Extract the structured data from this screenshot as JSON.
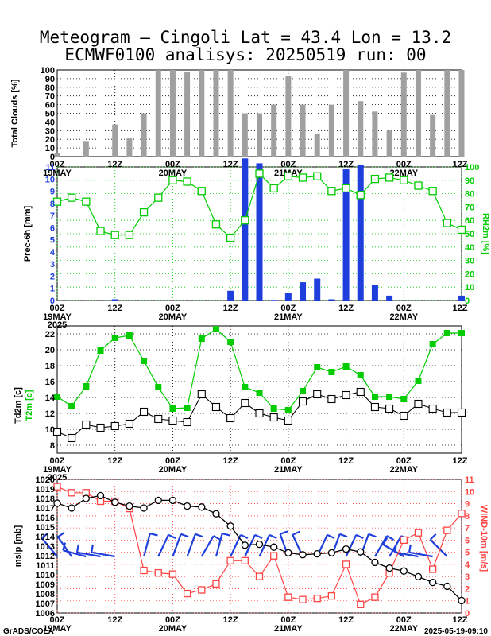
{
  "title_line1": "Meteogram – Cingoli Lat = 43.4 Lon = 13.2",
  "title_line2": "ECMWF0100 analisys: 20250519 run: 00",
  "footer_left": "GrADS/COLA",
  "footer_right": "2025-05-19-09:10",
  "time_axis": {
    "tick_labels": [
      "00Z",
      "12Z",
      "00Z",
      "12Z",
      "00Z",
      "12Z",
      "00Z",
      "12Z"
    ],
    "date_labels": [
      "19MAY",
      "20MAY",
      "21MAY",
      "22MAY"
    ],
    "year_label": "2025"
  },
  "colors": {
    "clouds": "#a0a0a0",
    "precip": "#1f3fdd",
    "humidity": "#00cc00",
    "temperature": "#00cc00",
    "dewpoint": "#000000",
    "pressure": "#000000",
    "wind": "#ff4444",
    "barbs": "#1f3fdd"
  },
  "chart_data": [
    {
      "type": "bar",
      "ylabel": "Total Clouds [%]",
      "ylim": [
        0,
        100
      ],
      "yticks": [
        0,
        10,
        20,
        30,
        40,
        50,
        60,
        70,
        80,
        90,
        100
      ],
      "x_hours": [
        0,
        6,
        12,
        15,
        18,
        21,
        24,
        27,
        30,
        33,
        36,
        39,
        42,
        45,
        48,
        51,
        54,
        57,
        60,
        63,
        66,
        69,
        72,
        75,
        78,
        81,
        84
      ],
      "values": [
        4,
        18,
        37,
        21,
        50,
        100,
        100,
        98,
        100,
        100,
        100,
        50,
        50,
        60,
        93,
        60,
        26,
        60,
        100,
        64,
        52,
        30,
        97,
        100,
        48,
        100,
        100
      ]
    },
    {
      "type": "bar+line",
      "ylabel_left": "Prec-6h [mm]",
      "ylabel_right": "RH2m [%]",
      "ylim_left": [
        0,
        11
      ],
      "yticks_left": [
        0,
        1,
        2,
        3,
        4,
        5,
        6,
        7,
        8,
        9,
        10,
        11
      ],
      "ylim_right": [
        0,
        100
      ],
      "yticks_right": [
        0,
        10,
        20,
        30,
        40,
        50,
        60,
        70,
        80,
        90,
        100
      ],
      "precip_x_hours": [
        12,
        36,
        39,
        42,
        45,
        48,
        51,
        54,
        57,
        60,
        63,
        66,
        69,
        84
      ],
      "precip_values": [
        0.1,
        0.8,
        11.7,
        11.3,
        0.05,
        0.6,
        1.5,
        1.8,
        0.1,
        10.8,
        11.2,
        1.3,
        0.4,
        0.4
      ],
      "rh_x_hours": [
        0,
        3,
        6,
        9,
        12,
        15,
        18,
        21,
        24,
        27,
        30,
        33,
        36,
        39,
        42,
        45,
        48,
        51,
        54,
        57,
        60,
        63,
        66,
        69,
        72,
        75,
        78,
        81,
        84
      ],
      "rh_values": [
        74,
        77,
        74,
        52,
        49,
        49,
        66,
        77,
        90,
        89,
        82,
        57,
        47,
        60,
        95,
        84,
        93,
        92,
        93,
        82,
        84,
        79,
        91,
        92,
        90,
        86,
        82,
        58,
        53
      ]
    },
    {
      "type": "line",
      "ylabel": "Td2m [c] / T2m [c]",
      "ylim": [
        7,
        23
      ],
      "yticks": [
        8,
        10,
        12,
        14,
        16,
        18,
        20,
        22
      ],
      "t2m_x_hours": [
        0,
        3,
        6,
        9,
        12,
        15,
        18,
        21,
        24,
        27,
        30,
        33,
        36,
        39,
        42,
        45,
        48,
        51,
        54,
        57,
        60,
        63,
        66,
        69,
        72,
        75,
        78,
        81,
        84
      ],
      "t2m_values": [
        14.1,
        12.9,
        15.4,
        19.9,
        21.5,
        21.8,
        18.6,
        15.3,
        12.6,
        12.7,
        21.4,
        22.6,
        21.0,
        15.3,
        14.6,
        12.6,
        12.4,
        14.8,
        17.8,
        17.2,
        17.9,
        16.8,
        14.1,
        14.1,
        13.8,
        16.1,
        20.7,
        22.1,
        22.1
      ],
      "td2m_x_hours": [
        0,
        3,
        6,
        9,
        12,
        15,
        18,
        21,
        24,
        27,
        30,
        33,
        36,
        39,
        42,
        45,
        48,
        51,
        54,
        57,
        60,
        63,
        66,
        69,
        72,
        75,
        78,
        81,
        84
      ],
      "td2m_values": [
        9.7,
        8.9,
        10.6,
        10.2,
        10.4,
        10.7,
        12.2,
        11.3,
        11.1,
        10.9,
        14.4,
        12.8,
        11.4,
        13.3,
        12.0,
        11.5,
        11.1,
        13.5,
        14.4,
        13.8,
        14.3,
        14.7,
        12.8,
        12.6,
        11.7,
        13.2,
        12.6,
        12.1,
        12.1
      ]
    },
    {
      "type": "line",
      "ylabel_left": "mslp [mb]",
      "ylabel_right": "WIND-10m [m/s]",
      "ylim_left": [
        1006,
        1020
      ],
      "yticks_left": [
        1006,
        1007,
        1008,
        1009,
        1010,
        1011,
        1012,
        1013,
        1014,
        1015,
        1016,
        1017,
        1018,
        1019,
        1020
      ],
      "ylim_right": [
        0,
        11
      ],
      "yticks_right": [
        0,
        1,
        2,
        3,
        4,
        5,
        6,
        7,
        8,
        9,
        10,
        11
      ],
      "mslp_x_hours": [
        0,
        3,
        6,
        9,
        12,
        15,
        18,
        21,
        24,
        27,
        30,
        33,
        36,
        39,
        42,
        45,
        48,
        51,
        54,
        57,
        60,
        63,
        66,
        69,
        72,
        75,
        78,
        81,
        84
      ],
      "mslp_values": [
        1017.5,
        1017.0,
        1018.0,
        1018.3,
        1017.6,
        1017.2,
        1017.0,
        1017.8,
        1017.8,
        1017.2,
        1017.1,
        1016.4,
        1015.1,
        1013.1,
        1013.2,
        1012.9,
        1012.3,
        1012.1,
        1012.2,
        1012.3,
        1012.7,
        1012.4,
        1011.3,
        1010.7,
        1010.4,
        1009.8,
        1009.2,
        1008.8,
        1007.3
      ],
      "wind_x_hours": [
        0,
        3,
        6,
        9,
        12,
        15,
        18,
        21,
        24,
        27,
        30,
        33,
        36,
        39,
        42,
        45,
        48,
        51,
        54,
        57,
        60,
        63,
        66,
        69,
        72,
        75,
        78,
        81,
        84
      ],
      "wind_values": [
        10.4,
        9.9,
        9.9,
        9.2,
        9.2,
        8.6,
        3.5,
        3.3,
        3.2,
        1.6,
        1.9,
        2.4,
        4.3,
        4.3,
        3.0,
        4.7,
        1.3,
        1.1,
        1.2,
        1.4,
        4.0,
        0.7,
        1.3,
        3.3,
        6.0,
        6.6,
        3.6,
        6.8,
        8.2
      ]
    }
  ]
}
